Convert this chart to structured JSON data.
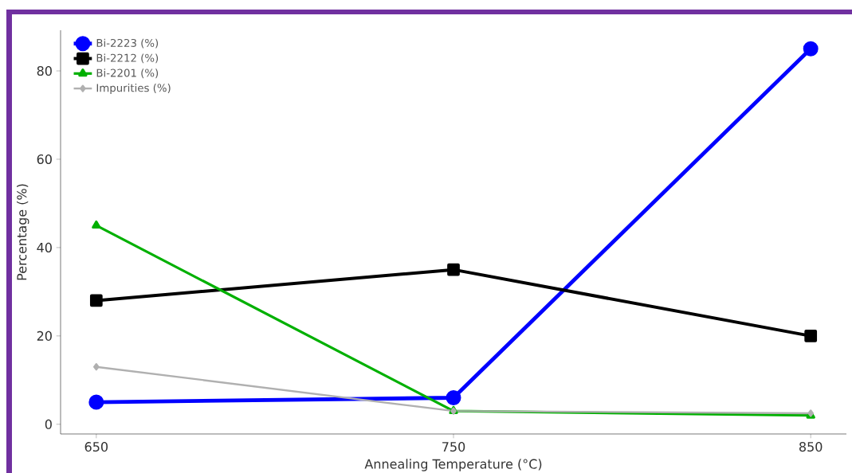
{
  "chart_data": {
    "type": "line",
    "xlabel": "Annealing Temperature (°C)",
    "ylabel": "Percentage (%)",
    "x": [
      650,
      750,
      850
    ],
    "series": [
      {
        "name": "Bi-2223 (%)",
        "color": "#0000ff",
        "marker": "circle",
        "values": [
          5,
          6,
          85
        ]
      },
      {
        "name": "Bi-2212 (%)",
        "color": "#000000",
        "marker": "square",
        "values": [
          28,
          35,
          20
        ]
      },
      {
        "name": "Bi-2201 (%)",
        "color": "#00b000",
        "marker": "triangle",
        "values": [
          45,
          3,
          2
        ]
      },
      {
        "name": "Impurities (%)",
        "color": "#b0b0b0",
        "marker": "diamond",
        "values": [
          13,
          3,
          2.5
        ]
      }
    ],
    "xlim": [
      640,
      860
    ],
    "ylim": [
      -2.2,
      89.2
    ],
    "xticks": [
      650,
      750,
      850
    ],
    "yticks": [
      0,
      20,
      40,
      60,
      80
    ],
    "grid": false,
    "legend": "top left",
    "line_style": "solid"
  }
}
